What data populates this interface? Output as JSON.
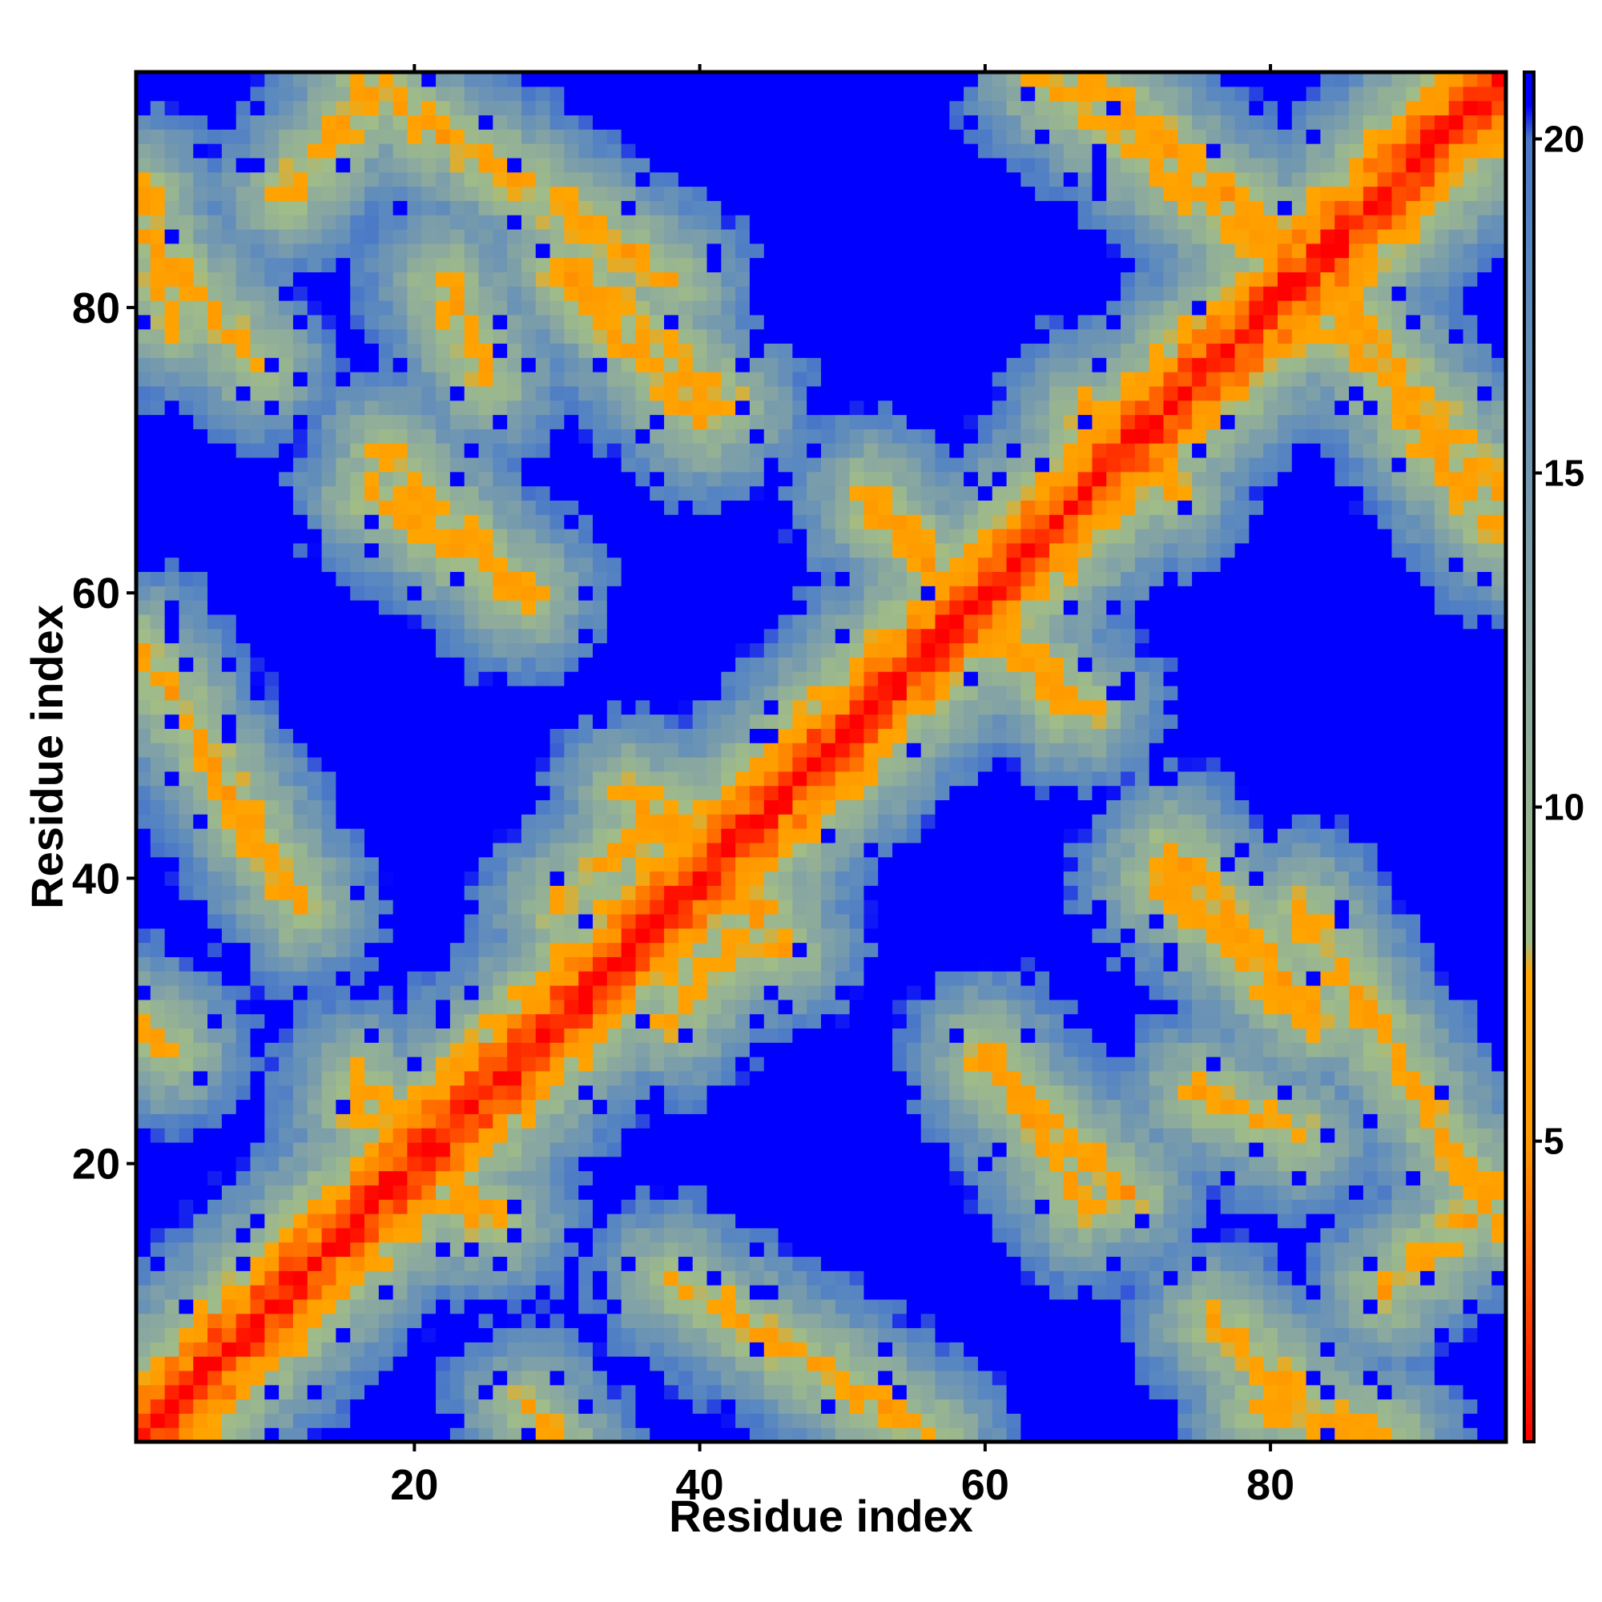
{
  "chart_data": {
    "type": "heatmap",
    "title": "",
    "xlabel": "Residue index",
    "ylabel": "Residue index",
    "n_residues": 96,
    "xlim": [
      1,
      96
    ],
    "ylim": [
      1,
      96
    ],
    "x_ticks": [
      20,
      40,
      60,
      80
    ],
    "y_ticks": [
      20,
      40,
      60,
      80
    ],
    "colorbar": {
      "range": [
        0.5,
        21
      ],
      "ticks": [
        5,
        10,
        15,
        20
      ],
      "stops": [
        {
          "value": 0.5,
          "color": "#ff0000"
        },
        {
          "value": 5.0,
          "color": "#ff9900"
        },
        {
          "value": 7.5,
          "color": "#ffa500"
        },
        {
          "value": 8.0,
          "color": "#a0bc88"
        },
        {
          "value": 12.0,
          "color": "#8aa8a0"
        },
        {
          "value": 18.0,
          "color": "#5a88c0"
        },
        {
          "value": 20.0,
          "color": "#4a78c8"
        },
        {
          "value": 20.5,
          "color": "#0000ff"
        },
        {
          "value": 21.0,
          "color": "#0000ff"
        }
      ]
    },
    "matrix_description": "Symmetric pairwise residue distance map (Angstrom). Red diagonal = near-zero distance; orange bands = close contacts between helical segments; blue = distances beyond 20.",
    "contact_bands": [
      {
        "from": [
          1,
          56
        ],
        "to": [
          12,
          38
        ],
        "strength": "close"
      },
      {
        "from": [
          9,
          76
        ],
        "to": [
          1,
          85
        ],
        "strength": "close"
      },
      {
        "from": [
          16,
          24
        ],
        "to": [
          26,
          16
        ],
        "strength": "close"
      },
      {
        "from": [
          28,
          3
        ],
        "to": [
          30,
          0
        ],
        "strength": "close"
      },
      {
        "from": [
          16,
          96
        ],
        "to": [
          38,
          82
        ],
        "strength": "close"
      },
      {
        "from": [
          17,
          67
        ],
        "to": [
          28,
          60
        ],
        "strength": "close"
      },
      {
        "from": [
          30,
          83
        ],
        "to": [
          40,
          72
        ],
        "strength": "close"
      },
      {
        "from": [
          35,
          46
        ],
        "to": [
          44,
          38
        ],
        "strength": "close"
      },
      {
        "from": [
          38,
          30
        ],
        "to": [
          45,
          38
        ],
        "strength": "close"
      },
      {
        "from": [
          49,
          52
        ],
        "to": [
          53,
          54
        ],
        "strength": "close"
      },
      {
        "from": [
          52,
          67
        ],
        "to": [
          58,
          60
        ],
        "strength": "close"
      },
      {
        "from": [
          60,
          58
        ],
        "to": [
          66,
          52
        ],
        "strength": "close"
      },
      {
        "from": [
          60,
          27
        ],
        "to": [
          70,
          18
        ],
        "strength": "close"
      },
      {
        "from": [
          64,
          96
        ],
        "to": [
          80,
          84
        ],
        "strength": "close"
      },
      {
        "from": [
          67,
          73
        ],
        "to": [
          72,
          68
        ],
        "strength": "close"
      },
      {
        "from": [
          73,
          42
        ],
        "to": [
          83,
          31
        ],
        "strength": "close"
      },
      {
        "from": [
          75,
          25
        ],
        "to": [
          82,
          22
        ],
        "strength": "close"
      },
      {
        "from": [
          79,
          3
        ],
        "to": [
          88,
          1
        ],
        "strength": "close"
      },
      {
        "from": [
          84,
          82
        ],
        "to": [
          96,
          67
        ],
        "strength": "close"
      },
      {
        "from": [
          88,
          11
        ],
        "to": [
          96,
          18
        ],
        "strength": "close"
      }
    ]
  }
}
